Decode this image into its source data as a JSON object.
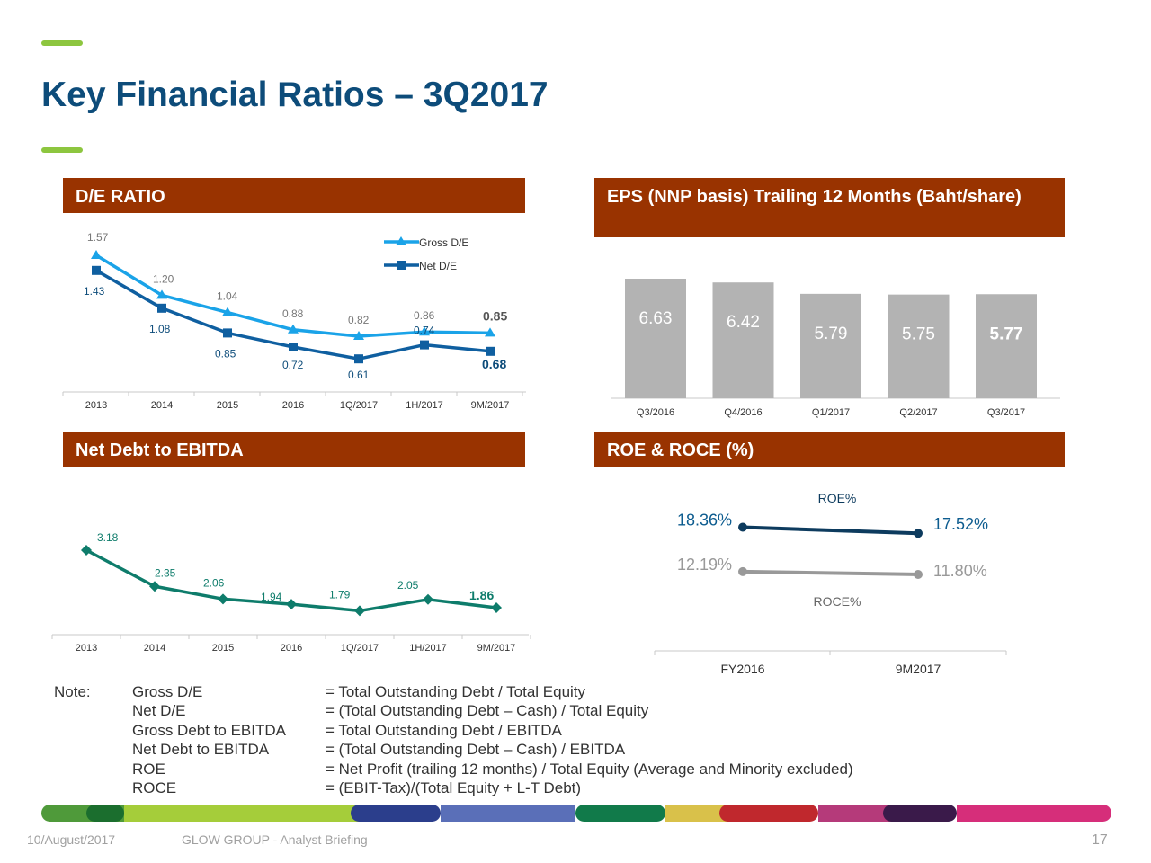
{
  "slide": {
    "title": "Key Financial Ratios – 3Q2017",
    "accent_color": "#8dc63f",
    "title_color": "#0d4c7a",
    "header_color": "#993300"
  },
  "chart_data": [
    {
      "id": "de_ratio",
      "type": "line",
      "title": "D/E RATIO",
      "categories": [
        "2013",
        "2014",
        "2015",
        "2016",
        "1Q/2017",
        "1H/2017",
        "9M/2017"
      ],
      "series": [
        {
          "name": "Gross D/E",
          "values": [
            1.57,
            1.2,
            1.04,
            0.88,
            0.82,
            0.86,
            0.85
          ],
          "labels": [
            "1.57",
            "1.20",
            "1.04",
            "0.88",
            "0.82",
            "0.86",
            "0.85"
          ],
          "color": "#1aa3e8",
          "marker": "triangle"
        },
        {
          "name": "Net D/E",
          "values": [
            1.43,
            1.08,
            0.85,
            0.72,
            0.61,
            0.74,
            0.68
          ],
          "labels": [
            "1.43",
            "1.08",
            "0.85",
            "0.72",
            "0.61",
            "0.74",
            "0.68"
          ],
          "color": "#0f5fa0",
          "marker": "square"
        }
      ],
      "legend": "top-right"
    },
    {
      "id": "eps",
      "type": "bar",
      "title": "EPS (NNP basis) Trailing 12 Months (Baht/share)",
      "categories": [
        "Q3/2016",
        "Q4/2016",
        "Q1/2017",
        "Q2/2017",
        "Q3/2017"
      ],
      "values": [
        6.63,
        6.42,
        5.79,
        5.75,
        5.77
      ],
      "labels": [
        "6.63",
        "6.42",
        "5.79",
        "5.75",
        "5.77"
      ],
      "color": "#b3b3b3",
      "ylim": [
        0,
        6.63
      ]
    },
    {
      "id": "net_debt_ebitda",
      "type": "line",
      "title": "Net Debt to EBITDA",
      "categories": [
        "2013",
        "2014",
        "2015",
        "2016",
        "1Q/2017",
        "1H/2017",
        "9M/2017"
      ],
      "series": [
        {
          "values": [
            3.18,
            2.35,
            2.06,
            1.94,
            1.79,
            2.05,
            1.86
          ],
          "labels": [
            "3.18",
            "2.35",
            "2.06",
            "1.94",
            "1.79",
            "2.05",
            "1.86"
          ],
          "color": "#0e7c6b",
          "marker": "diamond"
        }
      ]
    },
    {
      "id": "roe_roce",
      "type": "line",
      "title": "ROE & ROCE (%)",
      "categories": [
        "FY2016",
        "9M2017"
      ],
      "series": [
        {
          "name": "ROE%",
          "values": [
            18.36,
            17.52
          ],
          "labels": [
            "18.36%",
            "17.52%"
          ],
          "color": "#0d3b5e"
        },
        {
          "name": "ROCE%",
          "values": [
            12.19,
            11.8
          ],
          "labels": [
            "12.19%",
            "11.80%"
          ],
          "color": "#999999"
        }
      ]
    }
  ],
  "notes": {
    "label": "Note:",
    "rows": [
      {
        "term": "Gross D/E",
        "definition": "=  Total Outstanding Debt / Total Equity"
      },
      {
        "term": "Net D/E",
        "definition": "= (Total Outstanding Debt – Cash) / Total Equity"
      },
      {
        "term": "Gross Debt to EBITDA",
        "definition": "=  Total Outstanding Debt / EBITDA"
      },
      {
        "term": "Net Debt to EBITDA",
        "definition": "= (Total Outstanding Debt – Cash) / EBITDA"
      },
      {
        "term": "ROE",
        "definition": "= Net Profit (trailing 12 months) / Total Equity (Average and Minority excluded)"
      },
      {
        "term": "ROCE",
        "definition": "= (EBIT-Tax)/(Total Equity + L-T Debt)"
      }
    ]
  },
  "color_bar": {
    "segments": [
      "#4f9a3a",
      "#1b6e2e",
      "#a5cd3a",
      "#2b3e8c",
      "#5a6fb8",
      "#117a4a",
      "#d9c14a",
      "#c0282d",
      "#b53a7a",
      "#3a1a4a",
      "#d62e7a"
    ]
  },
  "footer": {
    "date": "10/August/2017",
    "org": "GLOW GROUP - Analyst Briefing",
    "page": "17"
  }
}
